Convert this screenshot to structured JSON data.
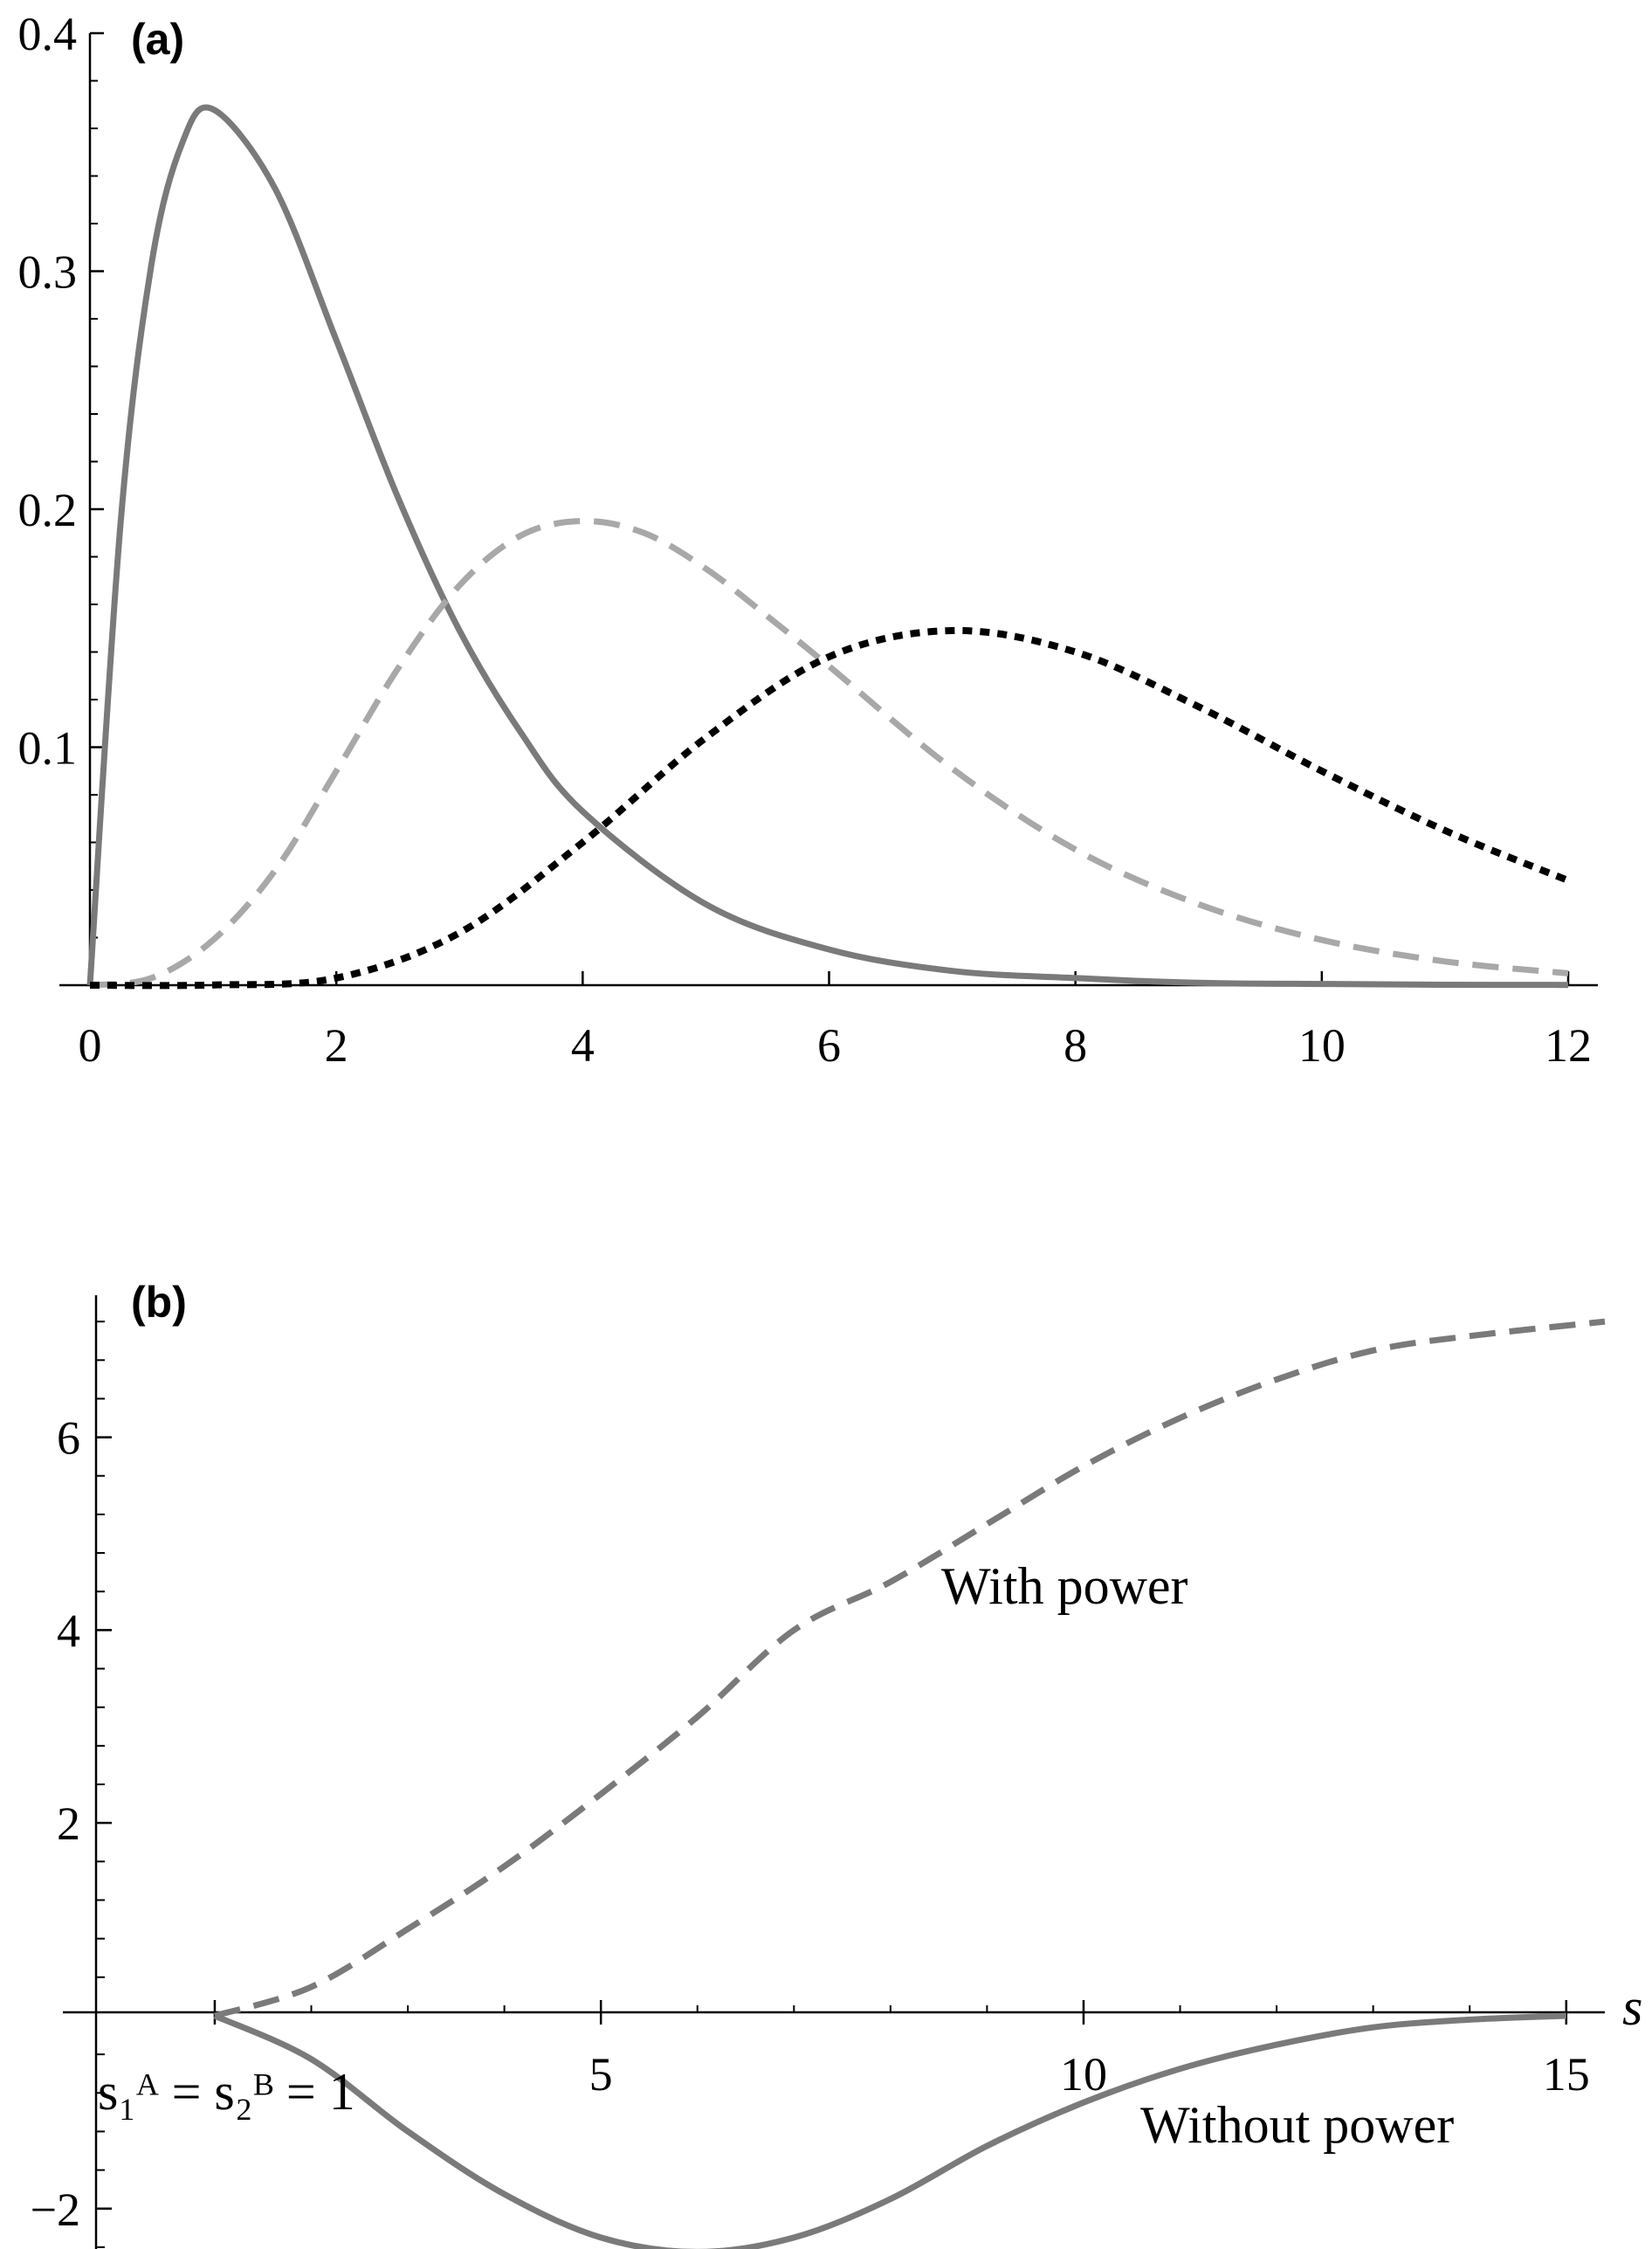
{
  "chart_data": [
    {
      "type": "line",
      "panel_label": "(a)",
      "xlim": [
        0,
        12
      ],
      "ylim": [
        0,
        0.4
      ],
      "x_ticks": [
        0,
        2,
        4,
        6,
        8,
        10,
        12
      ],
      "x_tick_labels": [
        "0",
        "2",
        "4",
        "6",
        "8",
        "10",
        "12"
      ],
      "y_ticks": [
        0.1,
        0.2,
        0.3,
        0.4
      ],
      "y_tick_labels": [
        "0.1",
        "0.2",
        "0.3",
        "0.4"
      ],
      "grid": false,
      "series": [
        {
          "style": "solid",
          "color": "#7a7a7a",
          "x": [
            0,
            0.25,
            0.5,
            0.75,
            1,
            1.5,
            2,
            2.5,
            3,
            3.5,
            4,
            5,
            6,
            7,
            8,
            9,
            10,
            11,
            12
          ],
          "y": [
            0,
            0.195,
            0.303,
            0.354,
            0.368,
            0.335,
            0.271,
            0.205,
            0.149,
            0.106,
            0.073,
            0.034,
            0.015,
            0.006,
            0.003,
            0.001,
            0.0005,
            0.0002,
            0.0001
          ]
        },
        {
          "style": "dashed",
          "color": "#a8a8a8",
          "x": [
            0,
            0.5,
            1,
            1.5,
            2,
            2.5,
            3,
            3.5,
            4,
            4.5,
            5,
            5.5,
            6,
            7,
            8,
            9,
            10,
            11,
            12
          ],
          "y": [
            0,
            0.003,
            0.019,
            0.048,
            0.09,
            0.133,
            0.168,
            0.189,
            0.195,
            0.19,
            0.175,
            0.155,
            0.134,
            0.091,
            0.057,
            0.034,
            0.019,
            0.01,
            0.005
          ]
        },
        {
          "style": "dotted",
          "color": "#000000",
          "x": [
            0,
            1,
            2,
            3,
            4,
            5,
            6,
            7,
            8,
            9,
            10,
            11,
            12
          ],
          "y": [
            0,
            0.0001,
            0.003,
            0.022,
            0.06,
            0.104,
            0.138,
            0.149,
            0.14,
            0.117,
            0.09,
            0.065,
            0.044
          ]
        }
      ]
    },
    {
      "type": "line",
      "panel_label": "(b)",
      "xlabel": "s",
      "xlim": [
        -0.7,
        15.4
      ],
      "ylim": [
        -2.6,
        7.5
      ],
      "x_ticks": [
        5,
        10,
        15
      ],
      "x_tick_labels": [
        "5",
        "10",
        "15"
      ],
      "y_ticks": [
        -2,
        2,
        4,
        6
      ],
      "y_tick_labels": [
        "−2",
        "2",
        "4",
        "6"
      ],
      "grid": false,
      "annotations": {
        "start_condition": "s₁ᴬ = s₂ᴮ = 1",
        "with_power": "With power",
        "without_power": "Without power"
      },
      "series": [
        {
          "name": "With power",
          "style": "dashed",
          "color": "#7a7a7a",
          "x": [
            1,
            2,
            3,
            4,
            5,
            6,
            7,
            8,
            9,
            10,
            11,
            12,
            13,
            14,
            15.4
          ],
          "y": [
            0,
            0.3,
            0.9,
            1.55,
            2.3,
            3.1,
            4.0,
            4.5,
            5.1,
            5.7,
            6.2,
            6.6,
            6.9,
            7.05,
            7.2
          ]
        },
        {
          "name": "Without power",
          "style": "solid",
          "color": "#7a7a7a",
          "x": [
            1,
            2,
            3,
            4,
            5,
            6,
            7,
            8,
            9,
            10,
            11,
            12,
            13,
            14,
            15
          ],
          "y": [
            0,
            -0.45,
            -1.2,
            -1.85,
            -2.3,
            -2.45,
            -2.3,
            -1.9,
            -1.35,
            -0.9,
            -0.55,
            -0.3,
            -0.12,
            -0.04,
            0
          ]
        }
      ]
    }
  ]
}
